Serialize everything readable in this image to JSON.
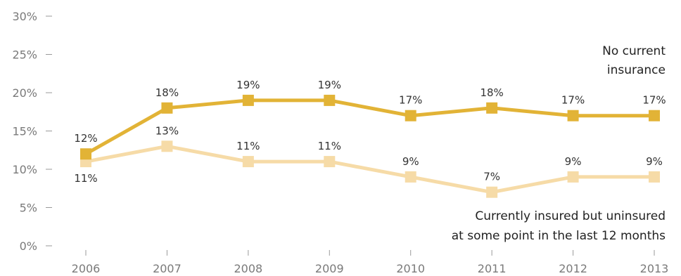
{
  "chart_data": {
    "type": "line",
    "title": "",
    "xlabel": "",
    "ylabel": "",
    "categories": [
      "2006",
      "2007",
      "2008",
      "2009",
      "2010",
      "2011",
      "2012",
      "2013"
    ],
    "y_ticks": [
      "0%",
      "5%",
      "10%",
      "15%",
      "20%",
      "25%",
      "30%"
    ],
    "ylim": [
      0,
      30
    ],
    "grid": false,
    "series": [
      {
        "name_lines": [
          "No current",
          "insurance"
        ],
        "values": [
          12,
          18,
          19,
          19,
          17,
          18,
          17,
          17
        ],
        "labels": [
          "12%",
          "18%",
          "19%",
          "19%",
          "17%",
          "18%",
          "17%",
          "17%"
        ],
        "color": "#E2B336"
      },
      {
        "name_lines": [
          "Currently insured but uninsured",
          "at some point in the last 12 months"
        ],
        "values": [
          11,
          13,
          11,
          11,
          9,
          7,
          9,
          9
        ],
        "labels": [
          "11%",
          "13%",
          "11%",
          "11%",
          "9%",
          "7%",
          "9%",
          "9%"
        ],
        "color": "#F6DBA7"
      }
    ]
  }
}
